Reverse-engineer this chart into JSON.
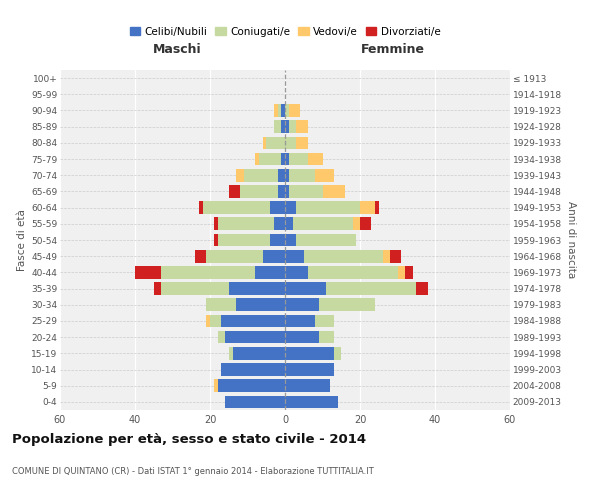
{
  "age_groups": [
    "0-4",
    "5-9",
    "10-14",
    "15-19",
    "20-24",
    "25-29",
    "30-34",
    "35-39",
    "40-44",
    "45-49",
    "50-54",
    "55-59",
    "60-64",
    "65-69",
    "70-74",
    "75-79",
    "80-84",
    "85-89",
    "90-94",
    "95-99",
    "100+"
  ],
  "birth_years": [
    "2009-2013",
    "2004-2008",
    "1999-2003",
    "1994-1998",
    "1989-1993",
    "1984-1988",
    "1979-1983",
    "1974-1978",
    "1969-1973",
    "1964-1968",
    "1959-1963",
    "1954-1958",
    "1949-1953",
    "1944-1948",
    "1939-1943",
    "1934-1938",
    "1929-1933",
    "1924-1928",
    "1919-1923",
    "1914-1918",
    "≤ 1913"
  ],
  "maschi": {
    "celibi": [
      16,
      18,
      17,
      14,
      16,
      17,
      13,
      15,
      8,
      6,
      4,
      3,
      4,
      2,
      2,
      1,
      0,
      1,
      1,
      0,
      0
    ],
    "coniugati": [
      0,
      0,
      0,
      1,
      2,
      3,
      8,
      18,
      25,
      15,
      14,
      15,
      18,
      10,
      9,
      6,
      5,
      2,
      1,
      0,
      0
    ],
    "vedovi": [
      0,
      1,
      0,
      0,
      0,
      1,
      0,
      0,
      0,
      0,
      0,
      0,
      0,
      0,
      2,
      1,
      1,
      0,
      1,
      0,
      0
    ],
    "divorziati": [
      0,
      0,
      0,
      0,
      0,
      0,
      0,
      2,
      7,
      3,
      1,
      1,
      1,
      3,
      0,
      0,
      0,
      0,
      0,
      0,
      0
    ]
  },
  "femmine": {
    "nubili": [
      14,
      12,
      13,
      13,
      9,
      8,
      9,
      11,
      6,
      5,
      3,
      2,
      3,
      1,
      1,
      1,
      0,
      1,
      0,
      0,
      0
    ],
    "coniugate": [
      0,
      0,
      0,
      2,
      4,
      5,
      15,
      24,
      24,
      21,
      16,
      16,
      17,
      9,
      7,
      5,
      3,
      2,
      1,
      0,
      0
    ],
    "vedove": [
      0,
      0,
      0,
      0,
      0,
      0,
      0,
      0,
      2,
      2,
      0,
      2,
      4,
      6,
      5,
      4,
      3,
      3,
      3,
      0,
      0
    ],
    "divorziate": [
      0,
      0,
      0,
      0,
      0,
      0,
      0,
      3,
      2,
      3,
      0,
      3,
      1,
      0,
      0,
      0,
      0,
      0,
      0,
      0,
      0
    ]
  },
  "colors": {
    "celibi": "#4472c4",
    "coniugati": "#c5d9a0",
    "vedovi": "#ffc96b",
    "divorziati": "#d02020"
  },
  "xlim": 60,
  "title": "Popolazione per età, sesso e stato civile - 2014",
  "subtitle": "COMUNE DI QUINTANO (CR) - Dati ISTAT 1° gennaio 2014 - Elaborazione TUTTITALIA.IT",
  "xlabel_left": "Maschi",
  "xlabel_right": "Femmine",
  "ylabel": "Fasce di età",
  "ylabel_right": "Anni di nascita",
  "legend_labels": [
    "Celibi/Nubili",
    "Coniugati/e",
    "Vedovi/e",
    "Divorziati/e"
  ],
  "bg_color": "#ffffff",
  "plot_bg_color": "#f0f0f0"
}
